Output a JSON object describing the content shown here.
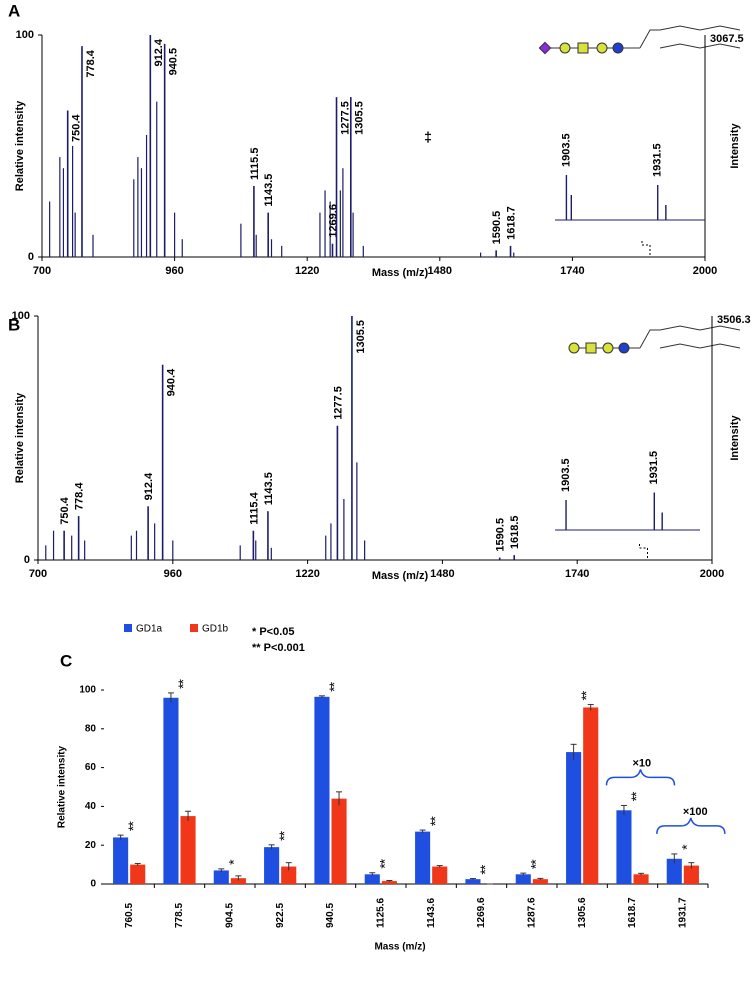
{
  "chart_data": [
    {
      "type": "spectrum",
      "panel_label": "A",
      "ylabel": "Relative intensity",
      "xlabel": "Mass (m/z)",
      "y2label": "Intensity",
      "intensity_label": "3067.5",
      "color": "#1c1c6b",
      "xlim": [
        700,
        2000
      ],
      "xticks": [
        700,
        960,
        1220,
        1480,
        1740,
        2000
      ],
      "ylim": [
        0,
        100
      ],
      "yticks": [
        0,
        100
      ],
      "peaks": {
        "x": [
          750.4,
          778.4,
          912.4,
          940.5,
          1115.5,
          1143.5,
          1269.6,
          1277.5,
          1305.5,
          1590.5,
          1618.7
        ],
        "values": [
          66,
          95,
          100,
          96,
          32,
          20,
          6,
          72,
          72,
          3,
          5
        ]
      },
      "minor_peaks": {
        "x": [
          715,
          735,
          742,
          760,
          765,
          800,
          880,
          888,
          895,
          905,
          925,
          960,
          975,
          1090,
          1120,
          1150,
          1170,
          1245,
          1255,
          1265,
          1285,
          1290,
          1310,
          1330,
          1560,
          1625
        ],
        "values": [
          25,
          45,
          40,
          50,
          20,
          10,
          35,
          45,
          40,
          55,
          70,
          20,
          8,
          15,
          10,
          8,
          5,
          20,
          30,
          25,
          30,
          40,
          20,
          5,
          2,
          2
        ]
      },
      "inset": {
        "xlim": [
          1900,
          1946
        ],
        "ylim": [
          0,
          100
        ],
        "x": [
          1903.5,
          1905,
          1931.5,
          1934
        ],
        "values": [
          90,
          50,
          70,
          30
        ],
        "labeled": [
          true,
          false,
          true,
          false
        ]
      },
      "annotation": "‡"
    },
    {
      "type": "spectrum",
      "panel_label": "B",
      "ylabel": "Relative intensity",
      "xlabel": "Mass (m/z)",
      "y2label": "Intensity",
      "intensity_label": "3506.3",
      "color": "#1c1c6b",
      "xlim": [
        700,
        2000
      ],
      "xticks": [
        700,
        960,
        1220,
        1480,
        1740,
        2000
      ],
      "ylim": [
        0,
        100
      ],
      "yticks": [
        0,
        100
      ],
      "peaks": {
        "x": [
          750.4,
          778.4,
          912.4,
          940.4,
          1115.4,
          1143.5,
          1277.5,
          1305.5,
          1590.5,
          1618.5
        ],
        "values": [
          12,
          18,
          22,
          80,
          12,
          20,
          55,
          100,
          1,
          2
        ]
      },
      "minor_peaks": {
        "x": [
          715,
          730,
          765,
          790,
          880,
          890,
          925,
          960,
          1090,
          1120,
          1150,
          1255,
          1265,
          1290,
          1315,
          1330
        ],
        "values": [
          6,
          12,
          10,
          8,
          10,
          12,
          15,
          8,
          6,
          8,
          5,
          10,
          15,
          25,
          40,
          8
        ]
      },
      "inset": {
        "xlim": [
          1900,
          1946
        ],
        "ylim": [
          0,
          100
        ],
        "x": [
          1903.5,
          1931.5,
          1934
        ],
        "values": [
          60,
          75,
          35
        ],
        "labeled": [
          true,
          true,
          false
        ]
      }
    },
    {
      "type": "bar",
      "panel_label": "C",
      "ylabel": "Relative intensity",
      "xlabel": "Mass (m/z)",
      "categories": [
        "760.5",
        "778.5",
        "904.5",
        "922.5",
        "940.5",
        "1125.6",
        "1143.6",
        "1269.6",
        "1287.6",
        "1305.6",
        "1618.7",
        "1931.7"
      ],
      "series": [
        {
          "name": "GD1a",
          "color": "#1f4fe0",
          "values": [
            24,
            96,
            7,
            19,
            96.5,
            5,
            27,
            2.5,
            5,
            68,
            38,
            13
          ],
          "errors": [
            1.2,
            2.5,
            0.8,
            1.2,
            0.5,
            0.8,
            0.8,
            0.3,
            0.6,
            4,
            2.5,
            2.5
          ]
        },
        {
          "name": "GD1b",
          "color": "#f0371a",
          "values": [
            10,
            35,
            3,
            9,
            44,
            1.5,
            9,
            0,
            2.5,
            91,
            5,
            9.5
          ],
          "errors": [
            0.6,
            2.5,
            1.2,
            2,
            3.5,
            0.3,
            0.5,
            0,
            0.4,
            1.5,
            0.5,
            1.5
          ]
        }
      ],
      "significance": [
        "**",
        "**",
        "*",
        "**",
        "**",
        "**",
        "**",
        "**",
        "**",
        "**",
        "**",
        "*"
      ],
      "significance_legend": [
        "* P<0.05",
        "** P<0.001"
      ],
      "scale_notes": [
        null,
        null,
        null,
        null,
        null,
        null,
        null,
        null,
        null,
        null,
        "×10",
        "×100"
      ],
      "ylim": [
        0,
        100
      ],
      "yticks": [
        0,
        20,
        40,
        60,
        80,
        100
      ]
    }
  ]
}
